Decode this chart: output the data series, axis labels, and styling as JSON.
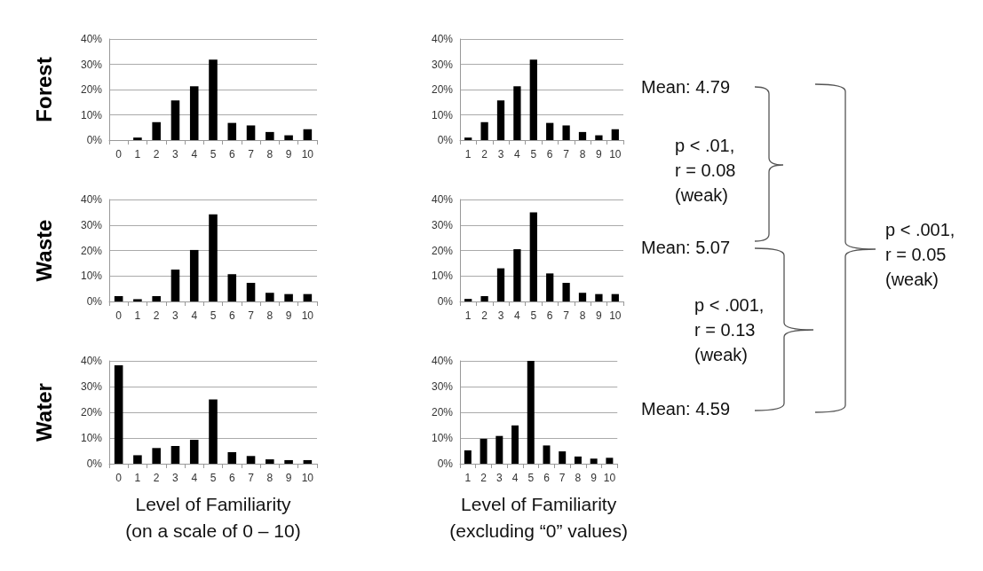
{
  "chart_data": [
    {
      "type": "bar",
      "ylabel": "Forest",
      "categories": [
        "0",
        "1",
        "2",
        "3",
        "4",
        "5",
        "6",
        "7",
        "8",
        "9",
        "10"
      ],
      "color": "#000000",
      "values": [
        0,
        1,
        7.1,
        15.7,
        21.3,
        31.8,
        6.8,
        5.8,
        3.2,
        1.9,
        4.3
      ],
      "ylim": [
        0,
        40
      ],
      "yticks": [
        {
          "value": 0,
          "label": "0%"
        },
        {
          "value": 10,
          "label": "10%"
        },
        {
          "value": 20,
          "label": "20%"
        },
        {
          "value": 30,
          "label": "30%"
        },
        {
          "value": 40,
          "label": "40%"
        }
      ],
      "grid": "y"
    },
    {
      "type": "bar",
      "categories": [
        "1",
        "2",
        "3",
        "4",
        "5",
        "6",
        "7",
        "8",
        "9",
        "10"
      ],
      "color": "#000000",
      "values": [
        1,
        7.1,
        15.7,
        21.3,
        31.8,
        6.8,
        5.8,
        3.2,
        1.9,
        4.3
      ],
      "ylim": [
        0,
        40
      ],
      "yticks": [
        {
          "value": 0,
          "label": "0%"
        },
        {
          "value": 10,
          "label": "10%"
        },
        {
          "value": 20,
          "label": "20%"
        },
        {
          "value": 30,
          "label": "30%"
        },
        {
          "value": 40,
          "label": "40%"
        }
      ],
      "grid": "y"
    },
    {
      "type": "bar",
      "ylabel": "Waste",
      "categories": [
        "0",
        "1",
        "2",
        "3",
        "4",
        "5",
        "6",
        "7",
        "8",
        "9",
        "10"
      ],
      "color": "#000000",
      "values": [
        2.1,
        0.9,
        2.1,
        12.5,
        20.2,
        34.2,
        10.7,
        7.3,
        3.4,
        2.9,
        2.9
      ],
      "ylim": [
        0,
        40
      ],
      "yticks": [
        {
          "value": 0,
          "label": "0%"
        },
        {
          "value": 10,
          "label": "10%"
        },
        {
          "value": 20,
          "label": "20%"
        },
        {
          "value": 30,
          "label": "30%"
        },
        {
          "value": 40,
          "label": "40%"
        }
      ],
      "grid": "y"
    },
    {
      "type": "bar",
      "categories": [
        "1",
        "2",
        "3",
        "4",
        "5",
        "6",
        "7",
        "8",
        "9",
        "10"
      ],
      "color": "#000000",
      "values": [
        1,
        2.1,
        13,
        20.5,
        35,
        11,
        7.3,
        3.4,
        2.9,
        2.9
      ],
      "ylim": [
        0,
        40
      ],
      "yticks": [
        {
          "value": 0,
          "label": "0%"
        },
        {
          "value": 10,
          "label": "10%"
        },
        {
          "value": 20,
          "label": "20%"
        },
        {
          "value": 30,
          "label": "30%"
        },
        {
          "value": 40,
          "label": "40%"
        }
      ],
      "grid": "y"
    },
    {
      "type": "bar",
      "ylabel": "Water",
      "xlabel": "Level of Familiarity\n(on a scale of 0 – 10)",
      "categories": [
        "0",
        "1",
        "2",
        "3",
        "4",
        "5",
        "6",
        "7",
        "8",
        "9",
        "10"
      ],
      "color": "#000000",
      "values": [
        38.3,
        3.3,
        6.1,
        6.9,
        9.3,
        25,
        4.5,
        3,
        1.7,
        1.4,
        1.4
      ],
      "ylim": [
        0,
        40
      ],
      "yticks": [
        {
          "value": 0,
          "label": "0%"
        },
        {
          "value": 10,
          "label": "10%"
        },
        {
          "value": 20,
          "label": "20%"
        },
        {
          "value": 30,
          "label": "30%"
        },
        {
          "value": 40,
          "label": "40%"
        }
      ],
      "grid": "y"
    },
    {
      "type": "bar",
      "xlabel": "Level of Familiarity\n(excluding “0” values)",
      "categories": [
        "1",
        "2",
        "3",
        "4",
        "5",
        "6",
        "7",
        "8",
        "9",
        "10"
      ],
      "color": "#000000",
      "values": [
        5.2,
        9.7,
        10.8,
        14.9,
        40,
        7.1,
        4.8,
        2.8,
        2,
        2.3
      ],
      "ylim": [
        0,
        40
      ],
      "yticks": [
        {
          "value": 0,
          "label": "0%"
        },
        {
          "value": 10,
          "label": "10%"
        },
        {
          "value": 20,
          "label": "20%"
        },
        {
          "value": 30,
          "label": "30%"
        },
        {
          "value": 40,
          "label": "40%"
        }
      ],
      "grid": "y"
    },
    {
      "type": "other",
      "annotations": [
        "Mean: 4.79",
        "p < .01,\nr = 0.08\n(weak)",
        "Mean: 5.07",
        "p < .001,\nr = 0.13\n(weak)",
        "Mean: 4.59",
        "p < .001,\nr = 0.05\n(weak)"
      ]
    }
  ]
}
